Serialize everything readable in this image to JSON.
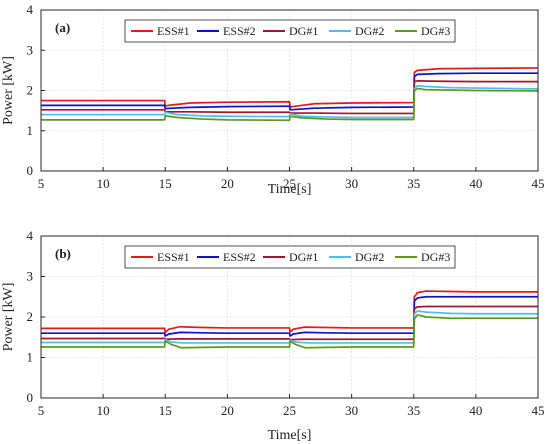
{
  "chart_data": [
    {
      "type": "line",
      "panel_label": "(a)",
      "xlabel": "Time[s]",
      "ylabel": "Power [kW]",
      "xlim": [
        5,
        45
      ],
      "ylim": [
        0,
        4
      ],
      "xticks": [
        5,
        10,
        15,
        20,
        25,
        30,
        35,
        40,
        45
      ],
      "yticks": [
        0,
        1,
        2,
        3,
        4
      ],
      "grid": true,
      "legend_position": "top",
      "series": [
        {
          "name": "ESS#1",
          "color": "#e31a1c",
          "points": [
            [
              5,
              1.75
            ],
            [
              14.95,
              1.75
            ],
            [
              15,
              1.62
            ],
            [
              15.5,
              1.64
            ],
            [
              17,
              1.69
            ],
            [
              20,
              1.71
            ],
            [
              25,
              1.72
            ],
            [
              25.05,
              1.59
            ],
            [
              25.5,
              1.61
            ],
            [
              27,
              1.67
            ],
            [
              30,
              1.69
            ],
            [
              35,
              1.7
            ],
            [
              35.05,
              2.45
            ],
            [
              35.3,
              2.5
            ],
            [
              37,
              2.54
            ],
            [
              40,
              2.55
            ],
            [
              45,
              2.56
            ]
          ]
        },
        {
          "name": "ESS#2",
          "color": "#1010c8",
          "points": [
            [
              5,
              1.63
            ],
            [
              14.95,
              1.63
            ],
            [
              15,
              1.55
            ],
            [
              15.5,
              1.56
            ],
            [
              17,
              1.58
            ],
            [
              20,
              1.6
            ],
            [
              25,
              1.61
            ],
            [
              25.05,
              1.52
            ],
            [
              25.5,
              1.53
            ],
            [
              27,
              1.56
            ],
            [
              30,
              1.58
            ],
            [
              35,
              1.59
            ],
            [
              35.05,
              2.35
            ],
            [
              35.3,
              2.4
            ],
            [
              37,
              2.42
            ],
            [
              40,
              2.43
            ],
            [
              45,
              2.43
            ]
          ]
        },
        {
          "name": "DG#1",
          "color": "#a2142f",
          "points": [
            [
              5,
              1.52
            ],
            [
              14.95,
              1.52
            ],
            [
              15,
              1.47
            ],
            [
              17,
              1.47
            ],
            [
              20,
              1.46
            ],
            [
              25,
              1.46
            ],
            [
              25.05,
              1.44
            ],
            [
              27,
              1.44
            ],
            [
              30,
              1.43
            ],
            [
              35,
              1.43
            ],
            [
              35.05,
              2.22
            ],
            [
              35.3,
              2.24
            ],
            [
              37,
              2.23
            ],
            [
              40,
              2.22
            ],
            [
              45,
              2.22
            ]
          ]
        },
        {
          "name": "DG#2",
          "color": "#4dbeee",
          "points": [
            [
              5,
              1.4
            ],
            [
              14.95,
              1.4
            ],
            [
              15,
              1.46
            ],
            [
              16,
              1.4
            ],
            [
              18,
              1.37
            ],
            [
              20,
              1.36
            ],
            [
              25,
              1.35
            ],
            [
              25.05,
              1.42
            ],
            [
              26,
              1.36
            ],
            [
              28,
              1.34
            ],
            [
              30,
              1.33
            ],
            [
              35,
              1.33
            ],
            [
              35.05,
              2.05
            ],
            [
              35.3,
              2.12
            ],
            [
              36,
              2.1
            ],
            [
              38,
              2.07
            ],
            [
              40,
              2.06
            ],
            [
              45,
              2.04
            ]
          ]
        },
        {
          "name": "DG#3",
          "color": "#5a9a1e",
          "points": [
            [
              5,
              1.27
            ],
            [
              14.95,
              1.27
            ],
            [
              15,
              1.37
            ],
            [
              16,
              1.33
            ],
            [
              18,
              1.29
            ],
            [
              20,
              1.27
            ],
            [
              25,
              1.26
            ],
            [
              25.05,
              1.36
            ],
            [
              26,
              1.32
            ],
            [
              28,
              1.29
            ],
            [
              30,
              1.28
            ],
            [
              35,
              1.28
            ],
            [
              35.05,
              2.0
            ],
            [
              35.3,
              2.05
            ],
            [
              36,
              2.02
            ],
            [
              40,
              2.0
            ],
            [
              45,
              1.99
            ]
          ]
        }
      ]
    },
    {
      "type": "line",
      "panel_label": "(b)",
      "xlabel": "Time[s]",
      "ylabel": "Power [kW]",
      "xlim": [
        5,
        45
      ],
      "ylim": [
        0,
        4
      ],
      "xticks": [
        5,
        10,
        15,
        20,
        25,
        30,
        35,
        40,
        45
      ],
      "yticks": [
        0,
        1,
        2,
        3,
        4
      ],
      "grid": true,
      "legend_position": "top",
      "series": [
        {
          "name": "ESS#1",
          "color": "#e31a1c",
          "points": [
            [
              5,
              1.72
            ],
            [
              14.95,
              1.72
            ],
            [
              15,
              1.62
            ],
            [
              15.3,
              1.7
            ],
            [
              16.2,
              1.76
            ],
            [
              18,
              1.74
            ],
            [
              20,
              1.73
            ],
            [
              25,
              1.73
            ],
            [
              25.05,
              1.63
            ],
            [
              25.3,
              1.7
            ],
            [
              26.2,
              1.75
            ],
            [
              28,
              1.74
            ],
            [
              30,
              1.73
            ],
            [
              35,
              1.73
            ],
            [
              35.05,
              2.5
            ],
            [
              35.3,
              2.6
            ],
            [
              36,
              2.64
            ],
            [
              38,
              2.63
            ],
            [
              40,
              2.62
            ],
            [
              45,
              2.62
            ]
          ]
        },
        {
          "name": "ESS#2",
          "color": "#1010c8",
          "points": [
            [
              5,
              1.6
            ],
            [
              14.95,
              1.6
            ],
            [
              15,
              1.53
            ],
            [
              15.3,
              1.58
            ],
            [
              16.2,
              1.62
            ],
            [
              18,
              1.61
            ],
            [
              20,
              1.6
            ],
            [
              25,
              1.6
            ],
            [
              25.05,
              1.53
            ],
            [
              25.3,
              1.58
            ],
            [
              26.2,
              1.62
            ],
            [
              28,
              1.61
            ],
            [
              30,
              1.6
            ],
            [
              35,
              1.6
            ],
            [
              35.05,
              2.4
            ],
            [
              35.3,
              2.47
            ],
            [
              36,
              2.5
            ],
            [
              38,
              2.5
            ],
            [
              40,
              2.5
            ],
            [
              45,
              2.5
            ]
          ]
        },
        {
          "name": "DG#1",
          "color": "#a2142f",
          "points": [
            [
              5,
              1.47
            ],
            [
              14.95,
              1.47
            ],
            [
              15,
              1.45
            ],
            [
              16,
              1.46
            ],
            [
              20,
              1.46
            ],
            [
              25,
              1.46
            ],
            [
              25.05,
              1.44
            ],
            [
              26,
              1.45
            ],
            [
              30,
              1.45
            ],
            [
              35,
              1.45
            ],
            [
              35.05,
              2.2
            ],
            [
              35.3,
              2.25
            ],
            [
              36,
              2.26
            ],
            [
              40,
              2.26
            ],
            [
              45,
              2.26
            ]
          ]
        },
        {
          "name": "DG#2",
          "color": "#4dbeee",
          "points": [
            [
              5,
              1.37
            ],
            [
              14.95,
              1.37
            ],
            [
              15,
              1.44
            ],
            [
              15.5,
              1.38
            ],
            [
              16.5,
              1.36
            ],
            [
              20,
              1.36
            ],
            [
              25,
              1.36
            ],
            [
              25.05,
              1.43
            ],
            [
              25.5,
              1.38
            ],
            [
              26.5,
              1.36
            ],
            [
              30,
              1.36
            ],
            [
              35,
              1.36
            ],
            [
              35.05,
              2.08
            ],
            [
              35.3,
              2.15
            ],
            [
              36,
              2.12
            ],
            [
              38,
              2.09
            ],
            [
              40,
              2.08
            ],
            [
              45,
              2.08
            ]
          ]
        },
        {
          "name": "DG#3",
          "color": "#5a9a1e",
          "points": [
            [
              5,
              1.26
            ],
            [
              14.95,
              1.26
            ],
            [
              15,
              1.4
            ],
            [
              15.5,
              1.32
            ],
            [
              16.3,
              1.24
            ],
            [
              18,
              1.25
            ],
            [
              20,
              1.26
            ],
            [
              25,
              1.26
            ],
            [
              25.05,
              1.4
            ],
            [
              25.5,
              1.32
            ],
            [
              26.3,
              1.24
            ],
            [
              28,
              1.25
            ],
            [
              30,
              1.26
            ],
            [
              35,
              1.26
            ],
            [
              35.05,
              1.95
            ],
            [
              35.3,
              2.05
            ],
            [
              36,
              2.0
            ],
            [
              38,
              1.97
            ],
            [
              40,
              1.97
            ],
            [
              45,
              1.97
            ]
          ]
        }
      ]
    }
  ]
}
